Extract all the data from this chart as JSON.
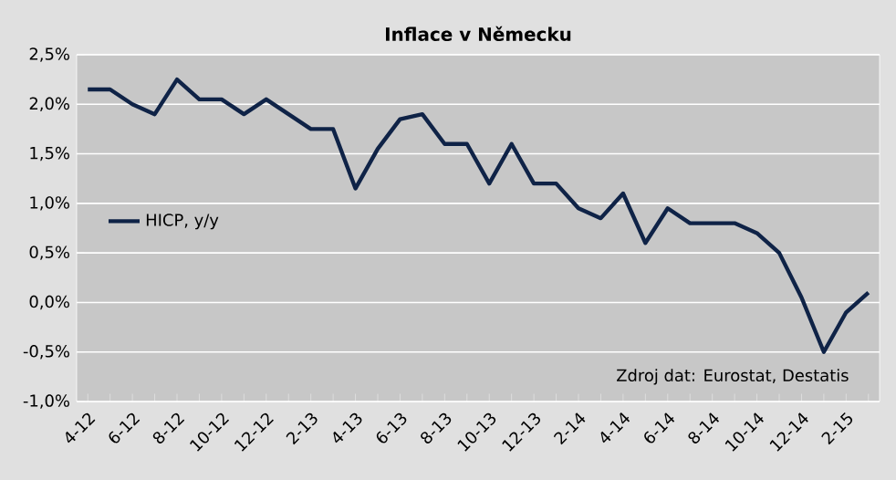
{
  "chart_data": {
    "type": "line",
    "title": "Inflace v Německu",
    "categories": [
      "4-12",
      null,
      "6-12",
      null,
      "8-12",
      null,
      "10-12",
      null,
      "12-12",
      null,
      "2-13",
      null,
      "4-13",
      null,
      "6-13",
      null,
      "8-13",
      null,
      "10-13",
      null,
      "12-13",
      null,
      "2-14",
      null,
      "4-14",
      null,
      "6-14",
      null,
      "8-14",
      null,
      "10-14",
      null,
      "12-14",
      null,
      "2-15",
      null
    ],
    "series": [
      {
        "name": "HICP, y/y",
        "color": "#0f2347",
        "values": [
          2.15,
          2.15,
          2.0,
          1.9,
          2.25,
          2.05,
          2.05,
          1.9,
          2.05,
          1.9,
          1.75,
          1.75,
          1.15,
          1.55,
          1.85,
          1.9,
          1.6,
          1.6,
          1.2,
          1.6,
          1.2,
          1.2,
          0.95,
          0.85,
          1.1,
          0.6,
          0.95,
          0.8,
          0.8,
          0.8,
          0.7,
          0.5,
          0.05,
          -0.5,
          -0.1,
          0.1
        ]
      }
    ],
    "ylim": [
      -1.0,
      2.5
    ],
    "yticks": [
      {
        "value": -1.0,
        "label": "-1,0%"
      },
      {
        "value": -0.5,
        "label": "-0,5%"
      },
      {
        "value": 0,
        "label": "0,0%"
      },
      {
        "value": 0.5,
        "label": "0,5%"
      },
      {
        "value": 1.0,
        "label": "1,0%"
      },
      {
        "value": 1.5,
        "label": "1,5%"
      },
      {
        "value": 2.0,
        "label": "2,0%"
      },
      {
        "value": 2.5,
        "label": "2,5%"
      }
    ],
    "grid": "y",
    "legend": "left",
    "line_style": "solid",
    "marker": "none",
    "annotations": [
      "Zdroj dat: Eurostat, Destatis"
    ]
  }
}
